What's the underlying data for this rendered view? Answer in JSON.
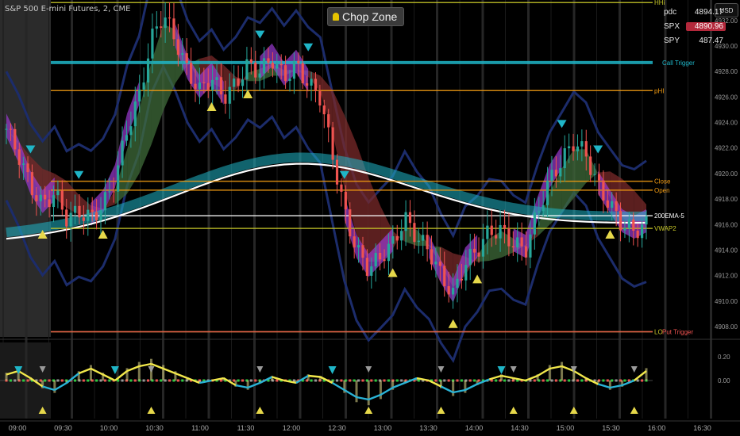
{
  "header": {
    "symbol_title": "S&P 500 E-mini Futures, 2, CME",
    "indicator_badge": "Chop Zone",
    "currency_button": "USD"
  },
  "quotes": [
    {
      "label": "pdc",
      "value": "4894.17",
      "highlight": false
    },
    {
      "label": "SPX",
      "value": "4890.96",
      "highlight": true
    },
    {
      "label": "SPY",
      "value": "487.47",
      "highlight": false
    }
  ],
  "colors": {
    "background": "#000000",
    "up_candle": "#26a69a",
    "down_candle": "#ef5350",
    "orange_level": "#f39c12",
    "yellow_level": "#c8c828",
    "teal_band": "#1fb5c7",
    "purple_cloud": "#9b3bd1",
    "green_cloud": "#3f6b3a",
    "red_cloud": "#7a2a2a"
  },
  "chart_data": [
    {
      "type": "line",
      "title": "",
      "x_ticks": [
        "09:00",
        "09:30",
        "10:00",
        "10:30",
        "11:00",
        "11:30",
        "12:00",
        "12:30",
        "13:00",
        "13:30",
        "14:00",
        "14:30",
        "15:00",
        "15:30",
        "16:00",
        "16:30"
      ],
      "y_ticks": [
        "4932.00",
        "4930.00",
        "4928.00",
        "4926.00",
        "4924.00",
        "4922.00",
        "4920.00",
        "4918.00",
        "4916.00",
        "4914.00",
        "4912.00",
        "4910.00",
        "4908.00"
      ],
      "ylim": [
        4907.2,
        4933.6
      ],
      "level_labels": [
        {
          "text": "HHi",
          "value": 4933.4,
          "color": "#c8c828"
        },
        {
          "text": "Call Trigger",
          "value": 4928.7,
          "color": "#1fb5c7"
        },
        {
          "text": "pHI",
          "value": 4926.5,
          "color": "#f39c12"
        },
        {
          "text": "Close",
          "value": 4919.4,
          "color": "#f39c12"
        },
        {
          "text": "Open",
          "value": 4918.7,
          "color": "#f39c12"
        },
        {
          "text": "200EMA-5",
          "value": 4916.7,
          "color": "#ffffff"
        },
        {
          "text": "VWAP2",
          "value": 4915.7,
          "color": "#c8c828"
        },
        {
          "text": "LO",
          "value": 4907.6,
          "color": "#c8c828"
        },
        {
          "text": "Put Trigger",
          "value": 4907.6,
          "color": "#ef5350"
        }
      ],
      "series": [
        {
          "values": [
            4923.5,
            4921.5,
            4919.0,
            4917.5,
            4918.5,
            4916.5,
            4917.0,
            4916.5,
            4917.5,
            4919.5,
            4923.5,
            4926.0,
            4930.5,
            4932.5,
            4930.5,
            4928.0,
            4926.5,
            4927.5,
            4926.0,
            4927.0,
            4928.5,
            4928.0,
            4929.0,
            4927.5,
            4928.5,
            4927.0,
            4926.0,
            4921.5,
            4917.0,
            4914.0,
            4912.5,
            4913.5,
            4914.5,
            4916.5,
            4915.0,
            4914.0,
            4912.0,
            4910.5,
            4913.0,
            4914.0,
            4915.5,
            4915.5,
            4914.5,
            4914.0,
            4917.0,
            4919.5,
            4921.0,
            4922.5,
            4921.5,
            4919.0,
            4917.5,
            4916.0,
            4915.5,
            4916.0
          ]
        }
      ]
    },
    {
      "type": "line",
      "title": "",
      "y_ticks": [
        "0.20",
        "0.00"
      ],
      "ylim": [
        -0.32,
        0.32
      ],
      "series": [
        {
          "values": [
            0.05,
            0.08,
            0.02,
            -0.05,
            -0.08,
            -0.02,
            0.06,
            0.1,
            0.05,
            0.0,
            0.08,
            0.12,
            0.14,
            0.1,
            0.06,
            0.02,
            -0.02,
            0.0,
            0.02,
            -0.04,
            -0.06,
            -0.02,
            0.03,
            0.0,
            -0.02,
            0.04,
            0.03,
            -0.02,
            -0.08,
            -0.14,
            -0.16,
            -0.12,
            -0.06,
            -0.02,
            0.02,
            0.0,
            -0.05,
            -0.1,
            -0.08,
            -0.03,
            0.01,
            0.04,
            0.02,
            0.0,
            0.04,
            0.1,
            0.12,
            0.08,
            0.02,
            -0.03,
            -0.06,
            -0.04,
            0.0,
            0.08
          ]
        }
      ]
    }
  ]
}
